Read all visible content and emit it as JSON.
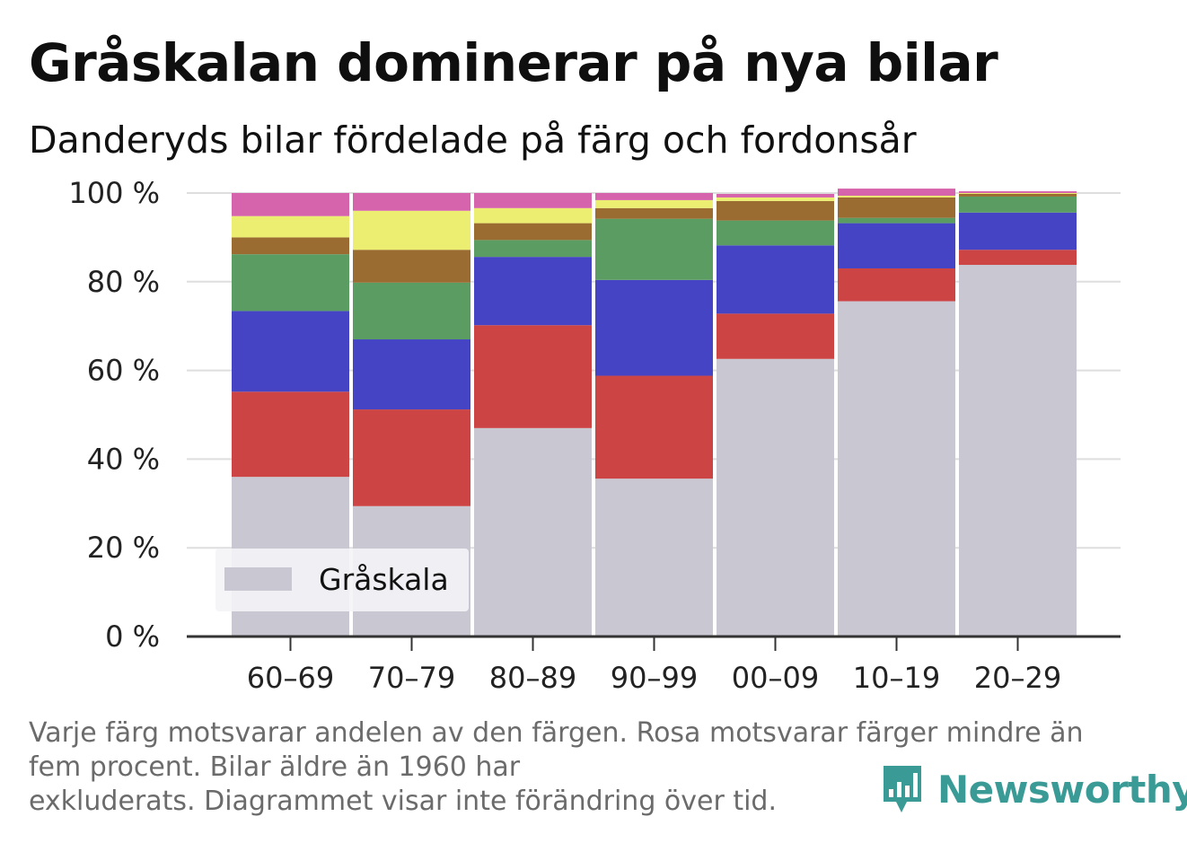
{
  "title": "Gråskalan dominerar på nya bilar",
  "subtitle": "Danderyds bilar fördelade på färg och fordonsår",
  "note_lines": [
    "Varje färg motsvarar andelen av den färgen. Rosa motsvarar färger mindre än",
    "fem procent. Bilar äldre än 1960 har",
    "exkluderats. Diagrammet visar inte förändring över tid."
  ],
  "brand": {
    "name": "Newsworthy",
    "icon": "newsworthy-logo-icon",
    "color": "#3a9b96"
  },
  "chart_data": {
    "type": "bar",
    "stacked": true,
    "normalized": true,
    "categories": [
      "60–69",
      "70–79",
      "80–89",
      "90–99",
      "00–09",
      "10–19",
      "20–29"
    ],
    "ylim": [
      0,
      100
    ],
    "yticks": [
      0,
      20,
      40,
      60,
      80,
      100
    ],
    "ytick_labels": [
      "0 %",
      "20 %",
      "40 %",
      "60 %",
      "80 %",
      "100 %"
    ],
    "grid": "horizontal",
    "series": [
      {
        "color": "#c8c7d2",
        "values": [
          36,
          29.4,
          47,
          35.6,
          62.6,
          75.6,
          83.8
        ]
      },
      {
        "color": "#cc4444",
        "values": [
          19.2,
          21.8,
          23.2,
          23.2,
          10.2,
          7.4,
          3.4
        ]
      },
      {
        "color": "#4444c4",
        "values": [
          18.2,
          15.8,
          15.4,
          21.6,
          15.4,
          10.2,
          8.4
        ]
      },
      {
        "color": "#5a9c62",
        "values": [
          12.8,
          12.8,
          3.8,
          13.8,
          5.6,
          1.2,
          3.6
        ]
      },
      {
        "color": "#9b6c32",
        "values": [
          3.8,
          7.4,
          3.8,
          2.4,
          4.4,
          4.6,
          0.6
        ]
      },
      {
        "color": "#ecee72",
        "values": [
          4.8,
          8.8,
          3.4,
          1.8,
          0.8,
          0.4,
          0.2
        ]
      },
      {
        "color": "#d564ac",
        "values": [
          5.2,
          4.0,
          3.4,
          1.6,
          0.8,
          1.6,
          0.4
        ]
      }
    ],
    "legend": {
      "entries": [
        {
          "label": "Gråskala",
          "color": "#c8c7d2"
        }
      ],
      "position": "bottom-left"
    }
  }
}
